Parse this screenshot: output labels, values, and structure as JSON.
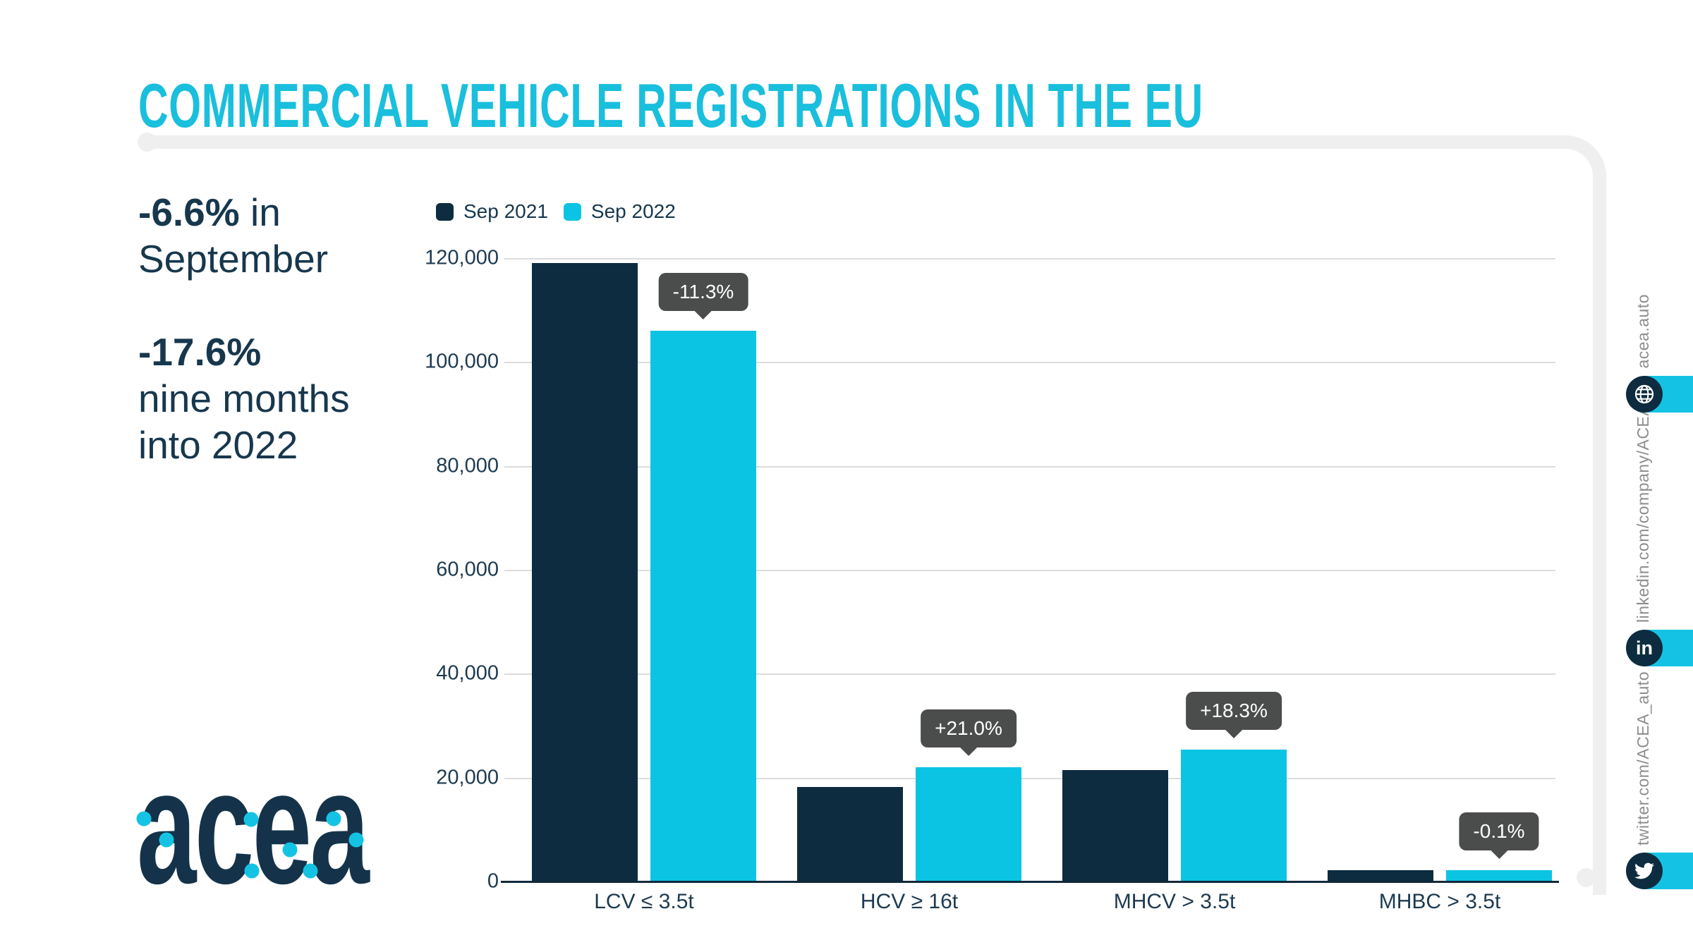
{
  "title": "COMMERCIAL VEHICLE REGISTRATIONS IN THE EU",
  "stats": {
    "s1_bold": "-6.6%",
    "s1_tail": " in",
    "s1_line2": "September",
    "s2_bold": "-17.6%",
    "s2_line2": "nine months",
    "s2_line3": "into 2022"
  },
  "logo": {
    "text": "acea"
  },
  "sidebar": {
    "links": [
      {
        "label": "acea.auto",
        "icon": "globe-icon"
      },
      {
        "label": "linkedin.com/company/ACEA/",
        "icon": "linkedin-icon"
      },
      {
        "label": "twitter.com/ACEA_auto",
        "icon": "twitter-icon"
      }
    ]
  },
  "colors": {
    "title_cyan": "#19bfdc",
    "bar_navy": "#0d2c3f",
    "bar_cyan": "#0bc4e4",
    "callout_bg": "#4b4d4c",
    "frame_gray": "#efefef",
    "text_navy": "#17374d",
    "url_gray": "#8d8d8d"
  },
  "chart_data": {
    "type": "bar",
    "title": "Commercial vehicle registrations in the EU",
    "categories": [
      "LCV ≤ 3.5t",
      "HCV ≥ 16t",
      "MHCV > 3.5t",
      "MHBC > 3.5t"
    ],
    "series": [
      {
        "name": "Sep 2021",
        "color": "#0d2c3f",
        "values": [
          119000,
          18200,
          21500,
          2200
        ]
      },
      {
        "name": "Sep 2022",
        "color": "#0bc4e4",
        "values": [
          106000,
          22000,
          25400,
          2200
        ]
      }
    ],
    "change_labels": [
      "-11.3%",
      "+21.0%",
      "+18.3%",
      "-0.1%"
    ],
    "xlabel": "",
    "ylabel": "",
    "ylim": [
      0,
      120000
    ],
    "yticks": [
      0,
      20000,
      40000,
      60000,
      80000,
      100000,
      120000
    ],
    "grid": "horizontal",
    "legend_position": "top-left"
  }
}
